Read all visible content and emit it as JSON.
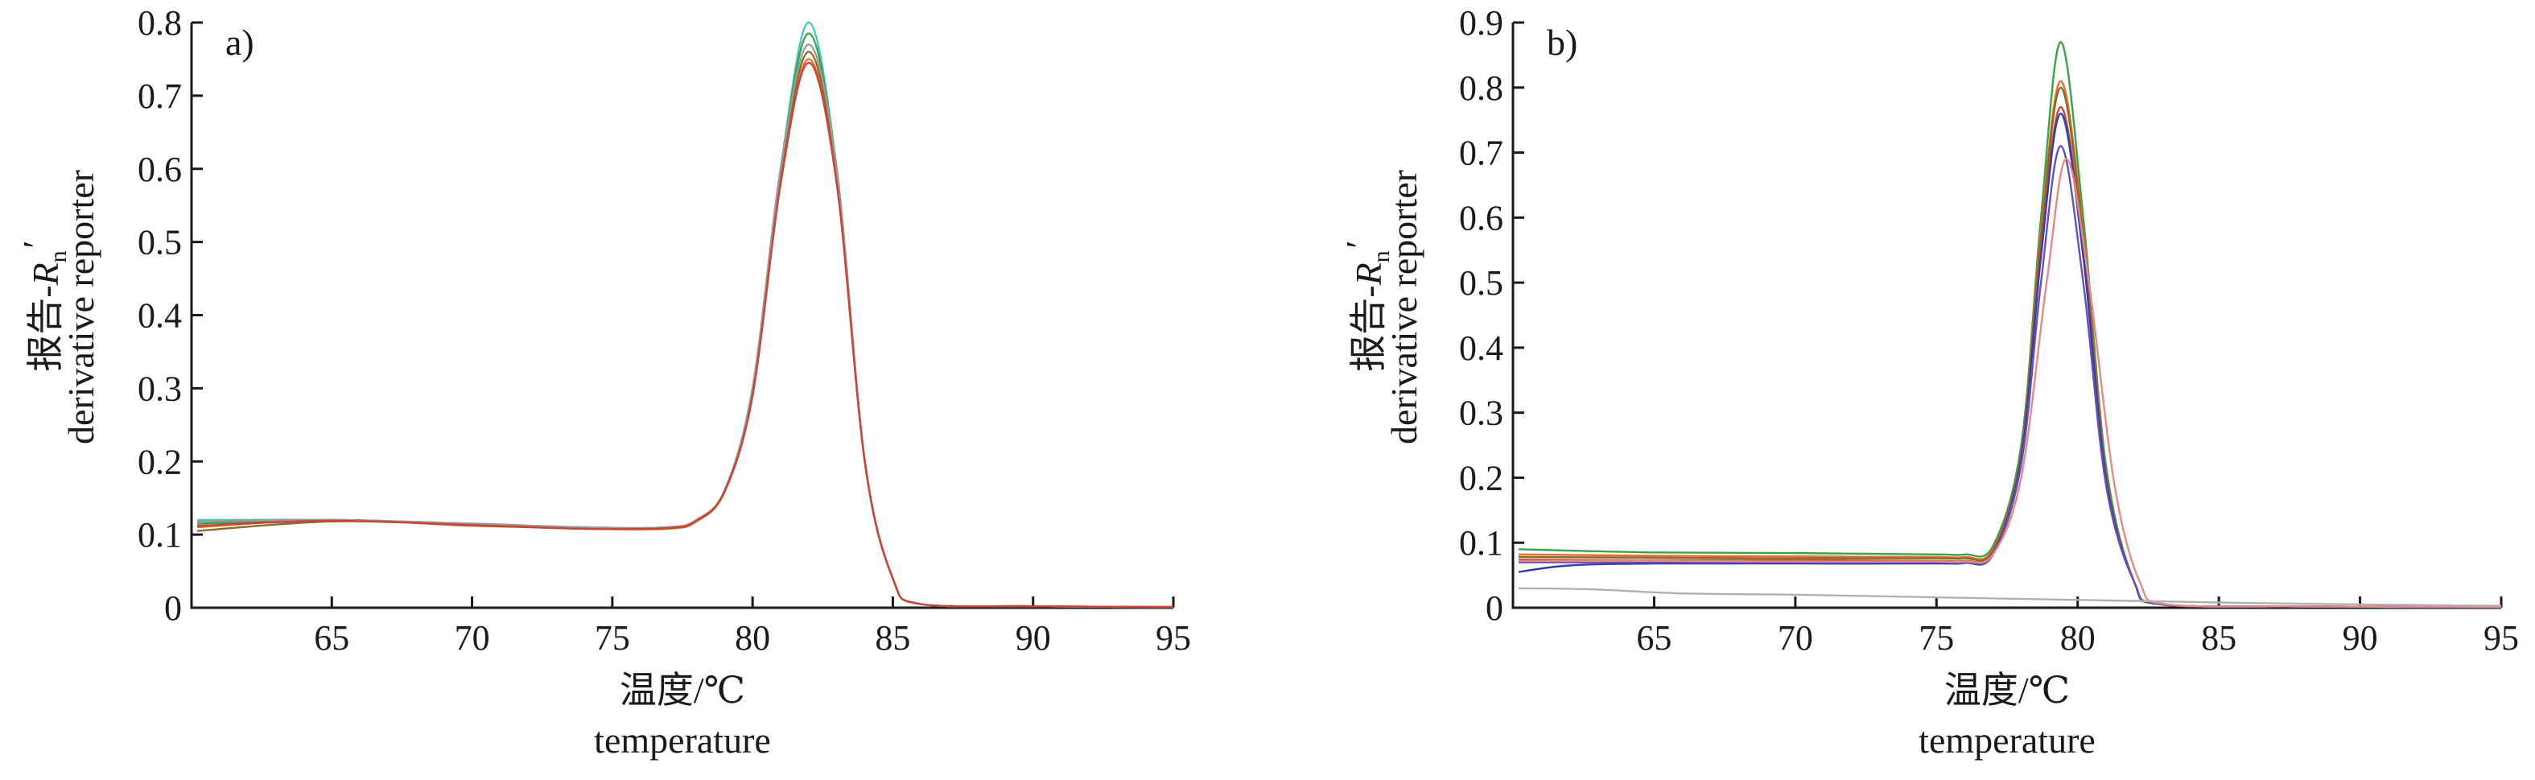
{
  "chart_data": [
    {
      "type": "line",
      "panel_label": "a)",
      "xlabel_cn": "温度/℃",
      "xlabel_en": "temperature",
      "ylabel_cn": "报告-",
      "ylabel_sym": "R",
      "ylabel_sub": "n",
      "ylabel_prime": "′",
      "ylabel_en": "derivative reporter",
      "xlim": [
        60,
        95
      ],
      "ylim": [
        0,
        0.8
      ],
      "xticks": [
        65,
        70,
        75,
        80,
        85,
        90,
        95
      ],
      "yticks": [
        0,
        0.1,
        0.2,
        0.3,
        0.4,
        0.5,
        0.6,
        0.7,
        0.8
      ],
      "ytick_labels": [
        "0",
        "0.1",
        "0.2",
        "0.3",
        "0.4",
        "0.5",
        "0.6",
        "0.7",
        "0.8"
      ],
      "grid": false,
      "legend": "none",
      "series": [
        {
          "color": "#48c6c4",
          "points": [
            [
              60.2,
              0.12
            ],
            [
              65,
              0.12
            ],
            [
              70,
              0.115
            ],
            [
              74,
              0.11
            ],
            [
              77,
              0.11
            ],
            [
              78,
              0.12
            ],
            [
              79,
              0.16
            ],
            [
              80,
              0.3
            ],
            [
              81,
              0.6
            ],
            [
              82,
              0.8
            ],
            [
              83,
              0.6
            ],
            [
              84,
              0.2
            ],
            [
              85,
              0.04
            ],
            [
              86,
              0.005
            ],
            [
              90,
              0.002
            ],
            [
              95,
              0.001
            ]
          ]
        },
        {
          "color": "#e36f2c",
          "points": [
            [
              60.2,
              0.11
            ],
            [
              65,
              0.12
            ],
            [
              70,
              0.112
            ],
            [
              74,
              0.108
            ],
            [
              77,
              0.108
            ],
            [
              78,
              0.118
            ],
            [
              79,
              0.158
            ],
            [
              80,
              0.29
            ],
            [
              81,
              0.58
            ],
            [
              82,
              0.75
            ],
            [
              83,
              0.58
            ],
            [
              84,
              0.2
            ],
            [
              85,
              0.04
            ],
            [
              86,
              0.005
            ],
            [
              90,
              0.002
            ],
            [
              95,
              0.001
            ]
          ]
        },
        {
          "color": "#8b6a2b",
          "points": [
            [
              60.2,
              0.105
            ],
            [
              65,
              0.118
            ],
            [
              70,
              0.113
            ],
            [
              74,
              0.108
            ],
            [
              77,
              0.109
            ],
            [
              78,
              0.119
            ],
            [
              79,
              0.159
            ],
            [
              80,
              0.295
            ],
            [
              81,
              0.59
            ],
            [
              82,
              0.76
            ],
            [
              83,
              0.59
            ],
            [
              84,
              0.2
            ],
            [
              85,
              0.04
            ],
            [
              86,
              0.005
            ],
            [
              90,
              0.002
            ],
            [
              95,
              0.001
            ]
          ]
        },
        {
          "color": "#3aa34a",
          "points": [
            [
              60.2,
              0.115
            ],
            [
              65,
              0.12
            ],
            [
              70,
              0.114
            ],
            [
              74,
              0.109
            ],
            [
              77,
              0.11
            ],
            [
              78,
              0.12
            ],
            [
              79,
              0.16
            ],
            [
              80,
              0.3
            ],
            [
              81,
              0.6
            ],
            [
              82,
              0.785
            ],
            [
              83,
              0.6
            ],
            [
              84,
              0.2
            ],
            [
              85,
              0.04
            ],
            [
              86,
              0.005
            ],
            [
              90,
              0.002
            ],
            [
              95,
              0.001
            ]
          ]
        },
        {
          "color": "#9a9a9a",
          "points": [
            [
              60.2,
              0.118
            ],
            [
              65,
              0.12
            ],
            [
              70,
              0.115
            ],
            [
              74,
              0.11
            ],
            [
              77,
              0.11
            ],
            [
              78,
              0.12
            ],
            [
              79,
              0.16
            ],
            [
              80,
              0.3
            ],
            [
              81,
              0.6
            ],
            [
              82,
              0.77
            ],
            [
              83,
              0.6
            ],
            [
              84,
              0.2
            ],
            [
              85,
              0.04
            ],
            [
              86,
              0.005
            ],
            [
              90,
              0.002
            ],
            [
              95,
              0.001
            ]
          ]
        },
        {
          "color": "#c9453a",
          "points": [
            [
              60.2,
              0.112
            ],
            [
              65,
              0.119
            ],
            [
              70,
              0.113
            ],
            [
              74,
              0.108
            ],
            [
              77,
              0.109
            ],
            [
              78,
              0.119
            ],
            [
              79,
              0.159
            ],
            [
              80,
              0.29
            ],
            [
              81,
              0.58
            ],
            [
              82,
              0.745
            ],
            [
              83,
              0.58
            ],
            [
              84,
              0.2
            ],
            [
              85,
              0.04
            ],
            [
              86,
              0.005
            ],
            [
              90,
              0.002
            ],
            [
              95,
              0.001
            ]
          ]
        }
      ]
    },
    {
      "type": "line",
      "panel_label": "b)",
      "xlabel_cn": "温度/℃",
      "xlabel_en": "temperature",
      "ylabel_cn": "报告-",
      "ylabel_sym": "R",
      "ylabel_sub": "n",
      "ylabel_prime": "′",
      "ylabel_en": "derivative reporter",
      "xlim": [
        60,
        95
      ],
      "ylim": [
        0,
        0.9
      ],
      "xticks": [
        65,
        70,
        75,
        80,
        85,
        90,
        95
      ],
      "yticks": [
        0,
        0.1,
        0.2,
        0.3,
        0.4,
        0.5,
        0.6,
        0.7,
        0.8,
        0.9
      ],
      "ytick_labels": [
        "0",
        "0.1",
        "0.2",
        "0.3",
        "0.4",
        "0.5",
        "0.6",
        "0.7",
        "0.8",
        "0.9"
      ],
      "grid": false,
      "legend": "none",
      "series": [
        {
          "color": "#3aa34a",
          "points": [
            [
              60.2,
              0.09
            ],
            [
              65,
              0.085
            ],
            [
              70,
              0.084
            ],
            [
              75,
              0.082
            ],
            [
              76,
              0.082
            ],
            [
              77,
              0.095
            ],
            [
              78,
              0.25
            ],
            [
              78.7,
              0.6
            ],
            [
              79.4,
              0.87
            ],
            [
              80.2,
              0.6
            ],
            [
              81,
              0.22
            ],
            [
              82,
              0.04
            ],
            [
              83,
              0.005
            ],
            [
              88,
              0.002
            ],
            [
              95,
              0.001
            ]
          ]
        },
        {
          "color": "#e36f2c",
          "points": [
            [
              60.2,
              0.082
            ],
            [
              65,
              0.08
            ],
            [
              70,
              0.079
            ],
            [
              75,
              0.078
            ],
            [
              76,
              0.078
            ],
            [
              77,
              0.09
            ],
            [
              78,
              0.24
            ],
            [
              78.7,
              0.58
            ],
            [
              79.4,
              0.81
            ],
            [
              80.2,
              0.58
            ],
            [
              81,
              0.21
            ],
            [
              82,
              0.04
            ],
            [
              83,
              0.005
            ],
            [
              88,
              0.002
            ],
            [
              95,
              0.001
            ]
          ]
        },
        {
          "color": "#8b6a2b",
          "points": [
            [
              60.2,
              0.078
            ],
            [
              65,
              0.077
            ],
            [
              70,
              0.076
            ],
            [
              75,
              0.076
            ],
            [
              76,
              0.076
            ],
            [
              77,
              0.088
            ],
            [
              78,
              0.24
            ],
            [
              78.7,
              0.57
            ],
            [
              79.4,
              0.8
            ],
            [
              80.2,
              0.57
            ],
            [
              81,
              0.21
            ],
            [
              82,
              0.04
            ],
            [
              83,
              0.005
            ],
            [
              88,
              0.002
            ],
            [
              95,
              0.001
            ]
          ]
        },
        {
          "color": "#c9453a",
          "points": [
            [
              60.2,
              0.074
            ],
            [
              65,
              0.073
            ],
            [
              70,
              0.073
            ],
            [
              75,
              0.072
            ],
            [
              76,
              0.072
            ],
            [
              77,
              0.085
            ],
            [
              78,
              0.23
            ],
            [
              78.7,
              0.55
            ],
            [
              79.4,
              0.77
            ],
            [
              80.2,
              0.55
            ],
            [
              81,
              0.2
            ],
            [
              82,
              0.04
            ],
            [
              83,
              0.005
            ],
            [
              88,
              0.002
            ],
            [
              95,
              0.001
            ]
          ]
        },
        {
          "color": "#2f3fa8",
          "points": [
            [
              60.2,
              0.055
            ],
            [
              62,
              0.065
            ],
            [
              65,
              0.068
            ],
            [
              70,
              0.068
            ],
            [
              75,
              0.068
            ],
            [
              76,
              0.069
            ],
            [
              77,
              0.082
            ],
            [
              78,
              0.23
            ],
            [
              78.7,
              0.54
            ],
            [
              79.4,
              0.76
            ],
            [
              80.2,
              0.54
            ],
            [
              81,
              0.2
            ],
            [
              82,
              0.04
            ],
            [
              83,
              0.005
            ],
            [
              88,
              0.002
            ],
            [
              95,
              0.001
            ]
          ]
        },
        {
          "color": "#6a4fb0",
          "points": [
            [
              60.2,
              0.07
            ],
            [
              65,
              0.07
            ],
            [
              70,
              0.07
            ],
            [
              75,
              0.07
            ],
            [
              76,
              0.07
            ],
            [
              77,
              0.082
            ],
            [
              78,
              0.22
            ],
            [
              78.7,
              0.5
            ],
            [
              79.4,
              0.71
            ],
            [
              80.2,
              0.5
            ],
            [
              81,
              0.19
            ],
            [
              82,
              0.04
            ],
            [
              83,
              0.005
            ],
            [
              88,
              0.002
            ],
            [
              95,
              0.001
            ]
          ]
        },
        {
          "color": "#e08a8a",
          "points": [
            [
              60.2,
              0.072
            ],
            [
              65,
              0.072
            ],
            [
              70,
              0.071
            ],
            [
              75,
              0.071
            ],
            [
              76,
              0.071
            ],
            [
              77,
              0.082
            ],
            [
              78,
              0.2
            ],
            [
              78.9,
              0.5
            ],
            [
              79.6,
              0.69
            ],
            [
              80.4,
              0.5
            ],
            [
              81.3,
              0.19
            ],
            [
              82.2,
              0.04
            ],
            [
              83.2,
              0.005
            ],
            [
              88,
              0.002
            ],
            [
              95,
              0.001
            ]
          ]
        },
        {
          "color": "#b0b0b0",
          "points": [
            [
              60.2,
              0.03
            ],
            [
              63,
              0.028
            ],
            [
              66,
              0.022
            ],
            [
              70,
              0.02
            ],
            [
              75,
              0.016
            ],
            [
              80,
              0.012
            ],
            [
              85,
              0.008
            ],
            [
              90,
              0.005
            ],
            [
              95,
              0.003
            ]
          ]
        }
      ]
    }
  ]
}
